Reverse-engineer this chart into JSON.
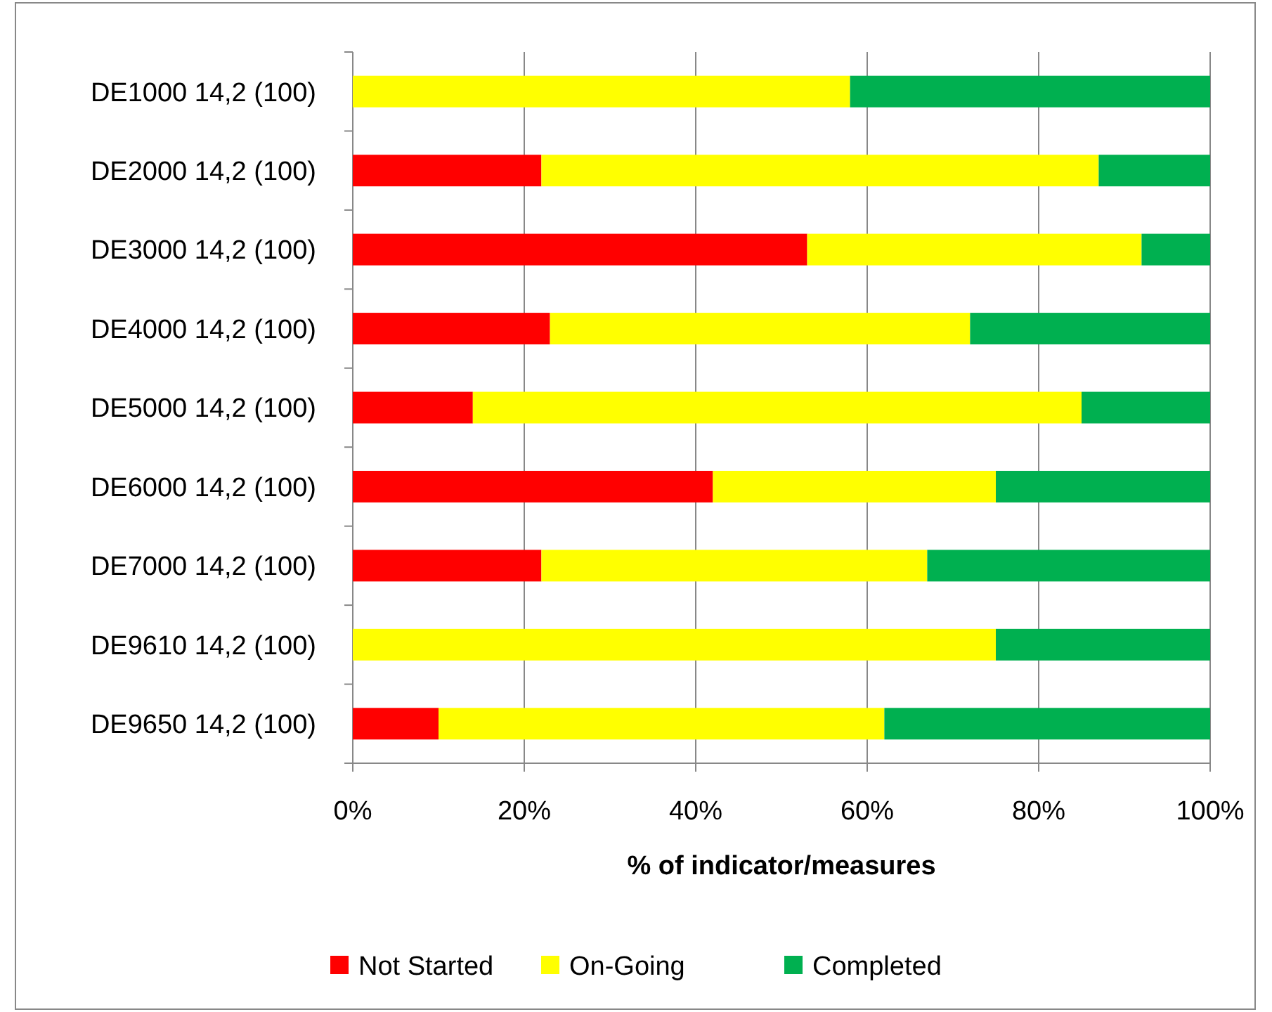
{
  "chart_data": {
    "type": "bar",
    "orientation": "horizontal",
    "stacked": true,
    "categories": [
      "DE1000 14,2 (100)",
      "DE2000 14,2 (100)",
      "DE3000 14,2 (100)",
      "DE4000 14,2 (100)",
      "DE5000 14,2 (100)",
      "DE6000 14,2 (100)",
      "DE7000 14,2 (100)",
      "DE9610 14,2 (100)",
      "DE9650 14,2 (100)"
    ],
    "series": [
      {
        "name": "Not Started",
        "color": "#ff0000",
        "values": [
          0,
          22,
          53,
          23,
          14,
          42,
          22,
          0,
          10
        ]
      },
      {
        "name": "On-Going",
        "color": "#ffff00",
        "values": [
          58,
          65,
          39,
          49,
          71,
          33,
          45,
          75,
          52
        ]
      },
      {
        "name": "Completed",
        "color": "#00b050",
        "values": [
          42,
          13,
          8,
          28,
          15,
          25,
          33,
          25,
          38
        ]
      }
    ],
    "xlabel": "% of indicator/measures",
    "xlim": [
      0,
      100
    ],
    "xticks": [
      {
        "value": 0,
        "label": "0%"
      },
      {
        "value": 20,
        "label": "20%"
      },
      {
        "value": 40,
        "label": "40%"
      },
      {
        "value": 60,
        "label": "60%"
      },
      {
        "value": 80,
        "label": "80%"
      },
      {
        "value": 100,
        "label": "100%"
      }
    ],
    "grid": "x",
    "legend": "bottom"
  }
}
